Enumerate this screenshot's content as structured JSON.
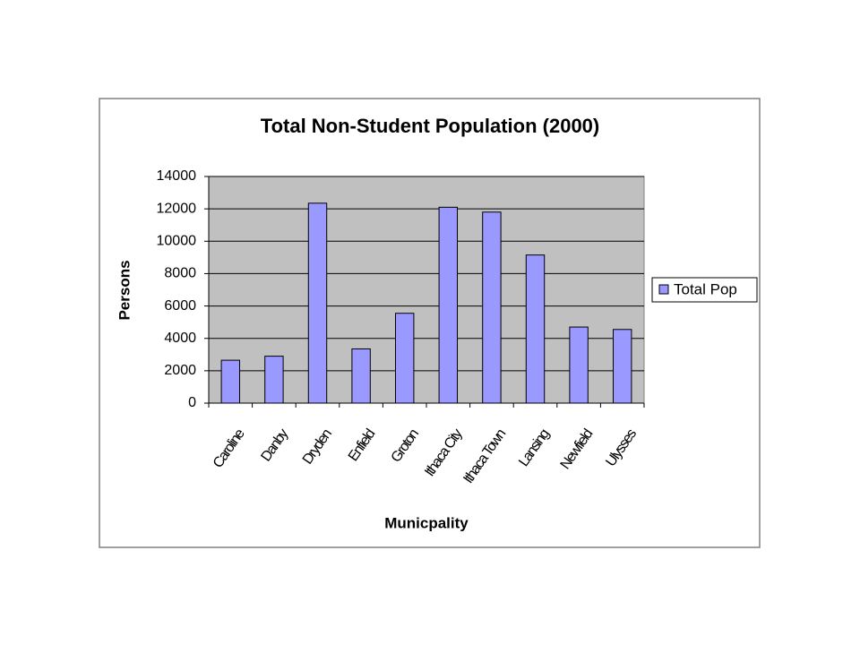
{
  "chart_data": {
    "type": "bar",
    "title": "Total Non-Student Population (2000)",
    "x_label": "Municpality",
    "y_label": "Persons",
    "categories": [
      "Caroline",
      "Danby",
      "Dryden",
      "Enfield",
      "Groton",
      "Ithaca City",
      "Ithaca Town",
      "Lansing",
      "Newfield",
      "Ulysses"
    ],
    "series": [
      {
        "name": "Total Pop",
        "color": "#9999ff",
        "values": [
          2650,
          2900,
          12350,
          3350,
          5550,
          12100,
          11800,
          9150,
          4700,
          4550
        ]
      }
    ],
    "ylim": [
      0,
      14000
    ],
    "yticks": [
      0,
      2000,
      4000,
      6000,
      8000,
      10000,
      12000,
      14000
    ],
    "grid": true,
    "legend": "right"
  }
}
